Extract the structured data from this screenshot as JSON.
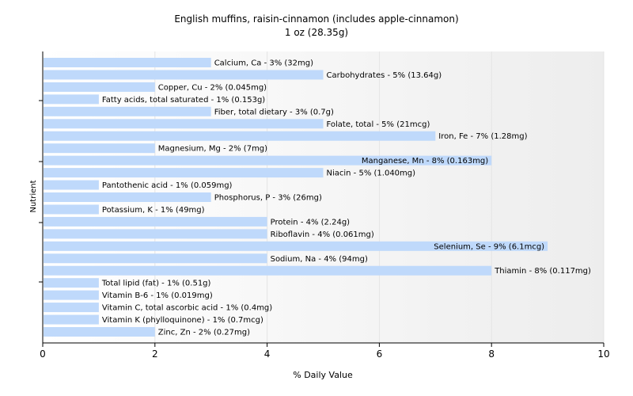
{
  "chart_data": {
    "type": "bar",
    "orientation": "horizontal",
    "title": "English muffins, raisin-cinnamon (includes apple-cinnamon)",
    "subtitle": "1 oz (28.35g)",
    "xlabel": "% Daily Value",
    "ylabel": "Nutrient",
    "xlim": [
      0,
      10
    ],
    "xticks": [
      "0",
      "2",
      "4",
      "6",
      "8",
      "10"
    ],
    "grid": "vertical",
    "bar_color": "#bfd9fb",
    "bars": [
      {
        "value": 3,
        "label": "Calcium, Ca - 3% (32mg)"
      },
      {
        "value": 5,
        "label": "Carbohydrates - 5% (13.64g)"
      },
      {
        "value": 2,
        "label": "Copper, Cu - 2% (0.045mg)"
      },
      {
        "value": 1,
        "label": "Fatty acids, total saturated - 1% (0.153g)"
      },
      {
        "value": 3,
        "label": "Fiber, total dietary - 3% (0.7g)"
      },
      {
        "value": 5,
        "label": "Folate, total - 5% (21mcg)"
      },
      {
        "value": 7,
        "label": "Iron, Fe - 7% (1.28mg)"
      },
      {
        "value": 2,
        "label": "Magnesium, Mg - 2% (7mg)"
      },
      {
        "value": 8,
        "label": "Manganese, Mn - 8% (0.163mg)"
      },
      {
        "value": 5,
        "label": "Niacin - 5% (1.040mg)"
      },
      {
        "value": 1,
        "label": "Pantothenic acid - 1% (0.059mg)"
      },
      {
        "value": 3,
        "label": "Phosphorus, P - 3% (26mg)"
      },
      {
        "value": 1,
        "label": "Potassium, K - 1% (49mg)"
      },
      {
        "value": 4,
        "label": "Protein - 4% (2.24g)"
      },
      {
        "value": 4,
        "label": "Riboflavin - 4% (0.061mg)"
      },
      {
        "value": 9,
        "label": "Selenium, Se - 9% (6.1mcg)"
      },
      {
        "value": 4,
        "label": "Sodium, Na - 4% (94mg)"
      },
      {
        "value": 8,
        "label": "Thiamin - 8% (0.117mg)"
      },
      {
        "value": 1,
        "label": "Total lipid (fat) - 1% (0.51g)"
      },
      {
        "value": 1,
        "label": "Vitamin B-6 - 1% (0.019mg)"
      },
      {
        "value": 1,
        "label": "Vitamin C, total ascorbic acid - 1% (0.4mg)"
      },
      {
        "value": 1,
        "label": "Vitamin K (phylloquinone) - 1% (0.7mcg)"
      },
      {
        "value": 2,
        "label": "Zinc, Zn - 2% (0.27mg)"
      }
    ]
  }
}
